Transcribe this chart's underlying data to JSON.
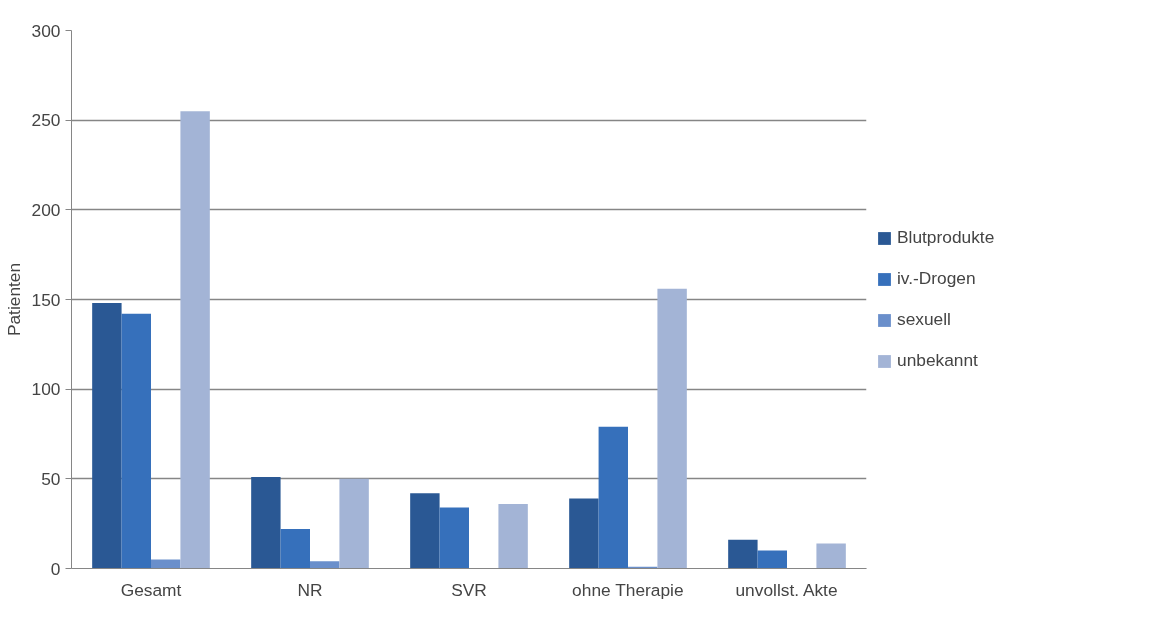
{
  "chart_data": {
    "type": "bar",
    "ylabel": "Patienten",
    "categories": [
      "Gesamt",
      "NR",
      "SVR",
      "ohne Therapie",
      "unvollst. Akte"
    ],
    "series": [
      {
        "name": "Blutprodukte",
        "color": "#2a5894",
        "values": [
          148,
          51,
          42,
          39,
          16
        ]
      },
      {
        "name": "iv.-Drogen",
        "color": "#3670bb",
        "values": [
          142,
          22,
          34,
          79,
          10
        ]
      },
      {
        "name": "sexuell",
        "color": "#6a8fcb",
        "values": [
          5,
          4,
          0,
          1,
          0
        ]
      },
      {
        "name": "unbekannt",
        "color": "#a3b4d6",
        "values": [
          255,
          50,
          36,
          156,
          14
        ]
      }
    ],
    "ylim": [
      0,
      300
    ],
    "yticks": [
      0,
      50,
      100,
      150,
      200,
      250,
      300
    ],
    "grid": "y",
    "legend": "right"
  }
}
